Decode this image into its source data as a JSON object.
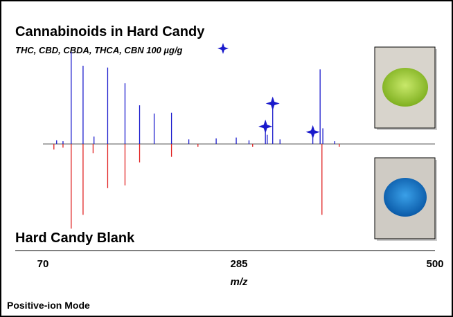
{
  "chart_data": {
    "type": "mirror-spectrum",
    "x_label": "m/z",
    "subtitle": "THC, CBD, CBDA, THCA, CBN 100 µg/g",
    "footer": "Positive-ion Mode",
    "xlim": [
      70,
      500
    ],
    "xticks": [
      70,
      285,
      500
    ],
    "ylim": [
      0,
      100
    ],
    "series": [
      {
        "name": "Cannabinoids in Hard Candy",
        "color": "#1a1acc",
        "direction": "up",
        "x": [
          85,
          92,
          101,
          114,
          126,
          141,
          160,
          176,
          192,
          211,
          230,
          260,
          282,
          296,
          314,
          316,
          322,
          330,
          366,
          374,
          377,
          390
        ],
        "values": [
          4,
          3,
          100,
          85,
          8,
          83,
          66,
          42,
          33,
          34,
          5,
          6,
          7,
          4,
          19,
          10,
          44,
          5,
          13,
          81,
          17,
          3
        ],
        "starred": [
          14,
          16,
          18
        ]
      },
      {
        "name": "Hard Candy Blank",
        "color": "#e02020",
        "direction": "down",
        "x": [
          82,
          92,
          101,
          114,
          125,
          141,
          160,
          176,
          211,
          240,
          300,
          376,
          395
        ],
        "values": [
          6,
          4,
          92,
          77,
          10,
          48,
          45,
          20,
          14,
          3,
          3,
          77,
          3
        ]
      }
    ]
  }
}
